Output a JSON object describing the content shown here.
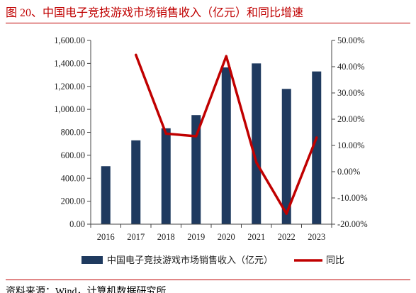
{
  "figure": {
    "title": "图 20、中国电子竞技游戏市场销售收入（亿元）和同比增速",
    "source": "资料来源：Wind，计算机数据研究所"
  },
  "colors": {
    "title": "#c00000",
    "rule": "#c00000",
    "bar": "#1f3a5f",
    "line": "#c00000",
    "axis": "#444444"
  },
  "chart_data": {
    "type": "bar",
    "categories": [
      "2016",
      "2017",
      "2018",
      "2019",
      "2020",
      "2021",
      "2022",
      "2023"
    ],
    "series": [
      {
        "name": "中国电子竞技游戏市场销售收入（亿元）",
        "type": "bar",
        "axis": "left",
        "values": [
          505,
          730,
          835,
          950,
          1365,
          1400,
          1178,
          1330
        ]
      },
      {
        "name": "同比",
        "type": "line",
        "axis": "right",
        "values": [
          null,
          44.5,
          14.5,
          13.5,
          44.0,
          3.5,
          -16.0,
          13.0
        ]
      }
    ],
    "y_left": {
      "min": 0,
      "max": 1600,
      "ticks": [
        0,
        200,
        400,
        600,
        800,
        1000,
        1200,
        1400,
        1600
      ],
      "tick_labels": [
        "0.00",
        "200.00",
        "400.00",
        "600.00",
        "800.00",
        "1,000.00",
        "1,200.00",
        "1,400.00",
        "1,600.00"
      ]
    },
    "y_right": {
      "min": -20,
      "max": 50,
      "ticks": [
        -20,
        -10,
        0,
        10,
        20,
        30,
        40,
        50
      ],
      "tick_labels": [
        "-20.00%",
        "-10.00%",
        "0.00%",
        "10.00%",
        "20.00%",
        "30.00%",
        "40.00%",
        "50.00%"
      ]
    },
    "grid": false,
    "legend": {
      "position": "bottom",
      "items": [
        "中国电子竞技游戏市场销售收入（亿元）",
        "同比"
      ]
    }
  }
}
